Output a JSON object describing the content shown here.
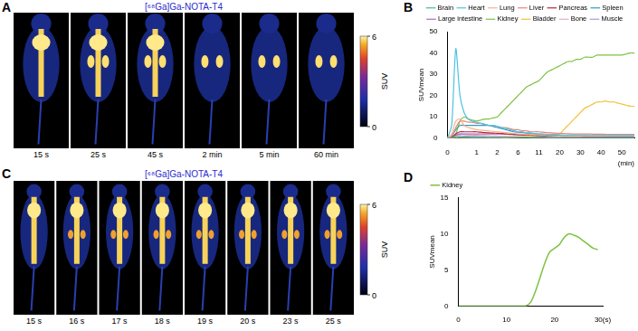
{
  "panel_labels": [
    "A",
    "B",
    "C",
    "D"
  ],
  "image_panels": [
    {
      "title": "[⁶⁸Ga]Ga-NOTA-T4",
      "frames": [
        "15 s",
        "25 s",
        "45 s",
        "2 min",
        "5 min",
        "60 min"
      ],
      "colorbar": {
        "label": "SUV",
        "range": [
          0,
          6
        ],
        "ticks": [
          0,
          6
        ]
      }
    },
    {
      "title": "[⁶⁸Ga]Ga-NOTA-T4",
      "frames": [
        "15 s",
        "16 s",
        "17 s",
        "18 s",
        "19 s",
        "20 s",
        "23 s",
        "25 s"
      ],
      "colorbar": {
        "label": "SUV",
        "range": [
          0,
          6
        ],
        "ticks": [
          0,
          6
        ]
      }
    }
  ],
  "chart_data": [
    {
      "type": "line",
      "x_label": "(min)",
      "y_label": "SUVmean",
      "legend": "top",
      "grid": false,
      "categories": [
        "0",
        null,
        null,
        null,
        null,
        null,
        null,
        "1",
        null,
        null,
        null,
        null,
        "2",
        null,
        null,
        null,
        null,
        "6",
        null,
        null,
        null,
        null,
        "11",
        null,
        null,
        null,
        null,
        "20",
        null,
        null,
        null,
        null,
        "30",
        null,
        null,
        null,
        null,
        "40",
        null,
        null,
        null,
        null,
        "50",
        null,
        null,
        null
      ],
      "ylim": [
        0,
        50
      ],
      "yticks": [
        0,
        10,
        20,
        30,
        40,
        50
      ],
      "series": [
        {
          "name": "Brain",
          "color": "#3fb8a4",
          "values": [
            0,
            0.2,
            0.8,
            0.6,
            0.5,
            0.5,
            0.4,
            0.4,
            0.4,
            0.4,
            0.3,
            0.3,
            0.3,
            0.3,
            0.3,
            0.3,
            0.3,
            0.3,
            0.3,
            0.3,
            0.3,
            0.3,
            0.3,
            0.3,
            0.2,
            0.2,
            0.2,
            0.2,
            0.2,
            0.2,
            0.2,
            0.2,
            0.2,
            0.2,
            0.2,
            0.2,
            0.2,
            0.2,
            0.2,
            0.2,
            0.2,
            0.2,
            0.2,
            0.2,
            0.2,
            0.2
          ]
        },
        {
          "name": "Heart",
          "color": "#4fc3e0",
          "values": [
            0,
            6,
            42,
            20,
            12,
            9,
            8,
            7.5,
            7,
            6.5,
            6,
            6,
            5.5,
            5,
            4.5,
            4,
            3.5,
            3,
            3,
            2.5,
            2.5,
            2.2,
            2,
            2,
            1.8,
            1.8,
            1.7,
            1.6,
            1.5,
            1.5,
            1.5,
            1.4,
            1.4,
            1.4,
            1.3,
            1.3,
            1.3,
            1.3,
            1.2,
            1.2,
            1.2,
            1.2,
            1.2,
            1.2,
            1.2,
            1.2
          ]
        },
        {
          "name": "Lung",
          "color": "#f6b38a",
          "values": [
            0,
            2,
            8,
            9,
            6,
            5,
            4.5,
            4,
            3.8,
            3.6,
            3.4,
            3.2,
            3,
            2.8,
            2.6,
            2.4,
            2.2,
            2,
            1.9,
            1.8,
            1.7,
            1.6,
            1.5,
            1.4,
            1.3,
            1.2,
            1.1,
            1,
            1,
            1,
            1,
            1,
            1,
            1,
            1,
            1,
            1,
            1,
            1,
            1,
            1,
            1,
            1,
            1,
            1,
            1
          ]
        },
        {
          "name": "Liver",
          "color": "#e8837c",
          "values": [
            0,
            1,
            5,
            8,
            8,
            7.5,
            7.5,
            7,
            7,
            6.5,
            6,
            6,
            5.5,
            5,
            5,
            4.5,
            4,
            4,
            3.5,
            3.5,
            3,
            3,
            3,
            2.8,
            2.6,
            2.5,
            2.4,
            2.3,
            2.2,
            2.1,
            2,
            2,
            2,
            2,
            2,
            1.9,
            1.9,
            1.9,
            1.8,
            1.8,
            1.8,
            1.8,
            1.8,
            1.8,
            1.8,
            1.8
          ]
        },
        {
          "name": "Pancreas",
          "color": "#b5263a",
          "values": [
            0,
            0.5,
            2,
            3,
            3,
            3,
            3,
            3,
            2.8,
            2.6,
            2.5,
            2.4,
            2.3,
            2.2,
            2,
            1.9,
            1.8,
            1.7,
            1.6,
            1.5,
            1.4,
            1.3,
            1.2,
            1.1,
            1,
            1,
            1,
            1,
            0.9,
            0.9,
            0.9,
            0.9,
            0.9,
            0.8,
            0.8,
            0.8,
            0.8,
            0.8,
            0.8,
            0.8,
            0.8,
            0.8,
            0.8,
            0.8,
            0.8,
            0.8
          ]
        },
        {
          "name": "Spleen",
          "color": "#2e9cc4",
          "values": [
            0,
            1,
            4,
            6,
            6,
            6,
            6,
            6,
            6,
            6,
            6,
            5.5,
            5,
            4.5,
            4,
            3.5,
            3,
            2.8,
            2.6,
            2.4,
            2.2,
            2,
            1.9,
            1.8,
            1.7,
            1.6,
            1.5,
            1.4,
            1.3,
            1.2,
            1.2,
            1.1,
            1.1,
            1,
            1,
            1,
            1,
            1,
            1,
            1,
            1,
            1,
            1,
            1,
            1,
            1
          ]
        },
        {
          "name": "Large intestine",
          "color": "#a46cc4",
          "values": [
            0,
            0.3,
            1.5,
            2,
            2,
            2,
            2,
            2,
            2,
            2,
            2,
            2,
            2,
            2,
            1.9,
            1.8,
            1.7,
            1.6,
            1.5,
            1.5,
            1.4,
            1.4,
            1.3,
            1.3,
            1.2,
            1.2,
            1.2,
            1.1,
            1.1,
            1.1,
            1,
            1,
            1,
            1,
            1,
            1,
            1,
            1,
            1,
            1,
            1,
            1,
            1,
            1,
            1,
            1
          ]
        },
        {
          "name": "Kidney",
          "color": "#7cc242",
          "values": [
            0,
            0,
            2,
            8,
            10,
            9,
            8.5,
            8,
            8.5,
            9,
            9,
            9.5,
            10,
            12,
            14,
            16,
            18,
            20,
            22,
            24,
            25,
            26,
            27,
            29,
            31,
            32,
            33,
            34,
            35,
            36,
            36,
            37,
            37,
            38,
            38,
            38,
            39,
            39,
            39,
            39,
            39,
            39,
            39,
            39.5,
            40,
            40
          ]
        },
        {
          "name": "Bladder",
          "color": "#f2c13a",
          "values": [
            0,
            0,
            0,
            0,
            0,
            0,
            0,
            0,
            0,
            0,
            0,
            0,
            0,
            0,
            0.2,
            0.3,
            0.4,
            0.5,
            0.6,
            0.7,
            0.8,
            0.9,
            1,
            1.2,
            1.4,
            1.6,
            1.8,
            2,
            4,
            6,
            8,
            10,
            12,
            14,
            15,
            16,
            17,
            17,
            17.5,
            17,
            17,
            16.5,
            16,
            15.5,
            15,
            15
          ]
        },
        {
          "name": "Bone",
          "color": "#f4a8b8",
          "values": [
            0,
            0.3,
            1.5,
            2,
            1.8,
            1.6,
            1.5,
            1.4,
            1.3,
            1.2,
            1.1,
            1,
            1,
            0.9,
            0.9,
            0.8,
            0.8,
            0.8,
            0.7,
            0.7,
            0.7,
            0.7,
            0.7,
            0.7,
            0.7,
            0.7,
            0.7,
            0.7,
            0.7,
            0.7,
            0.7,
            0.7,
            0.7,
            0.7,
            0.7,
            0.7,
            0.7,
            0.7,
            0.7,
            0.7,
            0.7,
            0.7,
            0.7,
            0.7,
            0.7,
            0.7
          ]
        },
        {
          "name": "Muscle",
          "color": "#9f9fdc",
          "values": [
            0,
            0.2,
            1,
            1.2,
            1,
            1,
            0.9,
            0.9,
            0.8,
            0.8,
            0.8,
            0.7,
            0.7,
            0.7,
            0.6,
            0.6,
            0.6,
            0.6,
            0.6,
            0.6,
            0.5,
            0.5,
            0.5,
            0.5,
            0.5,
            0.5,
            0.5,
            0.5,
            0.5,
            0.5,
            0.5,
            0.5,
            0.5,
            0.5,
            0.5,
            0.5,
            0.5,
            0.5,
            0.5,
            0.5,
            0.5,
            0.5,
            0.5,
            0.5,
            0.5,
            0.5
          ]
        }
      ]
    },
    {
      "type": "line",
      "y_label": "SUVmean",
      "legend": "upper left",
      "grid": false,
      "x": [
        0,
        1,
        2,
        3,
        4,
        5,
        6,
        7,
        8,
        9,
        10,
        11,
        12,
        13,
        14,
        15,
        16,
        17,
        18,
        19,
        20,
        21,
        22,
        23,
        24,
        25,
        26,
        27,
        28,
        29
      ],
      "xlim": [
        0,
        30
      ],
      "xticks": [
        0,
        10,
        20,
        {
          "value": 30,
          "label": "30(s)"
        }
      ],
      "ylim": [
        0,
        15
      ],
      "yticks": [
        0,
        5,
        10,
        15
      ],
      "series": [
        {
          "name": "Kidney",
          "color": "#7cc242",
          "values": [
            0,
            0,
            0,
            0,
            0,
            0,
            0,
            0,
            0,
            0,
            0,
            0,
            0,
            0,
            0,
            0.5,
            2,
            4,
            6,
            7.5,
            8,
            8.5,
            9.5,
            10,
            9.8,
            9.5,
            9,
            8.5,
            8,
            7.8
          ]
        }
      ]
    }
  ]
}
